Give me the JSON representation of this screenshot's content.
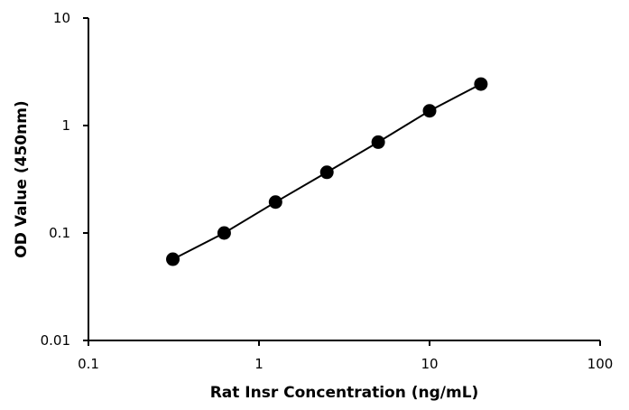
{
  "chart_data": {
    "type": "scatter",
    "title": "",
    "xlabel": "Rat Insr Concentration (ng/mL)",
    "ylabel": "OD Value (450nm)",
    "x_scale": "log",
    "y_scale": "log",
    "xlim": [
      0.1,
      100
    ],
    "ylim": [
      0.01,
      10
    ],
    "x_ticks": [
      "0.1",
      "1",
      "10",
      "100"
    ],
    "y_ticks": [
      "0.01",
      "0.1",
      "1",
      "10"
    ],
    "grid": false,
    "legend": "none",
    "series": [
      {
        "x": [
          0.3125,
          0.625,
          1.25,
          2.5,
          5,
          10,
          20
        ],
        "y": [
          0.057,
          0.1,
          0.194,
          0.367,
          0.7,
          1.37,
          2.43
        ],
        "color": "#000000",
        "marker": "circle",
        "connected": true
      }
    ]
  }
}
